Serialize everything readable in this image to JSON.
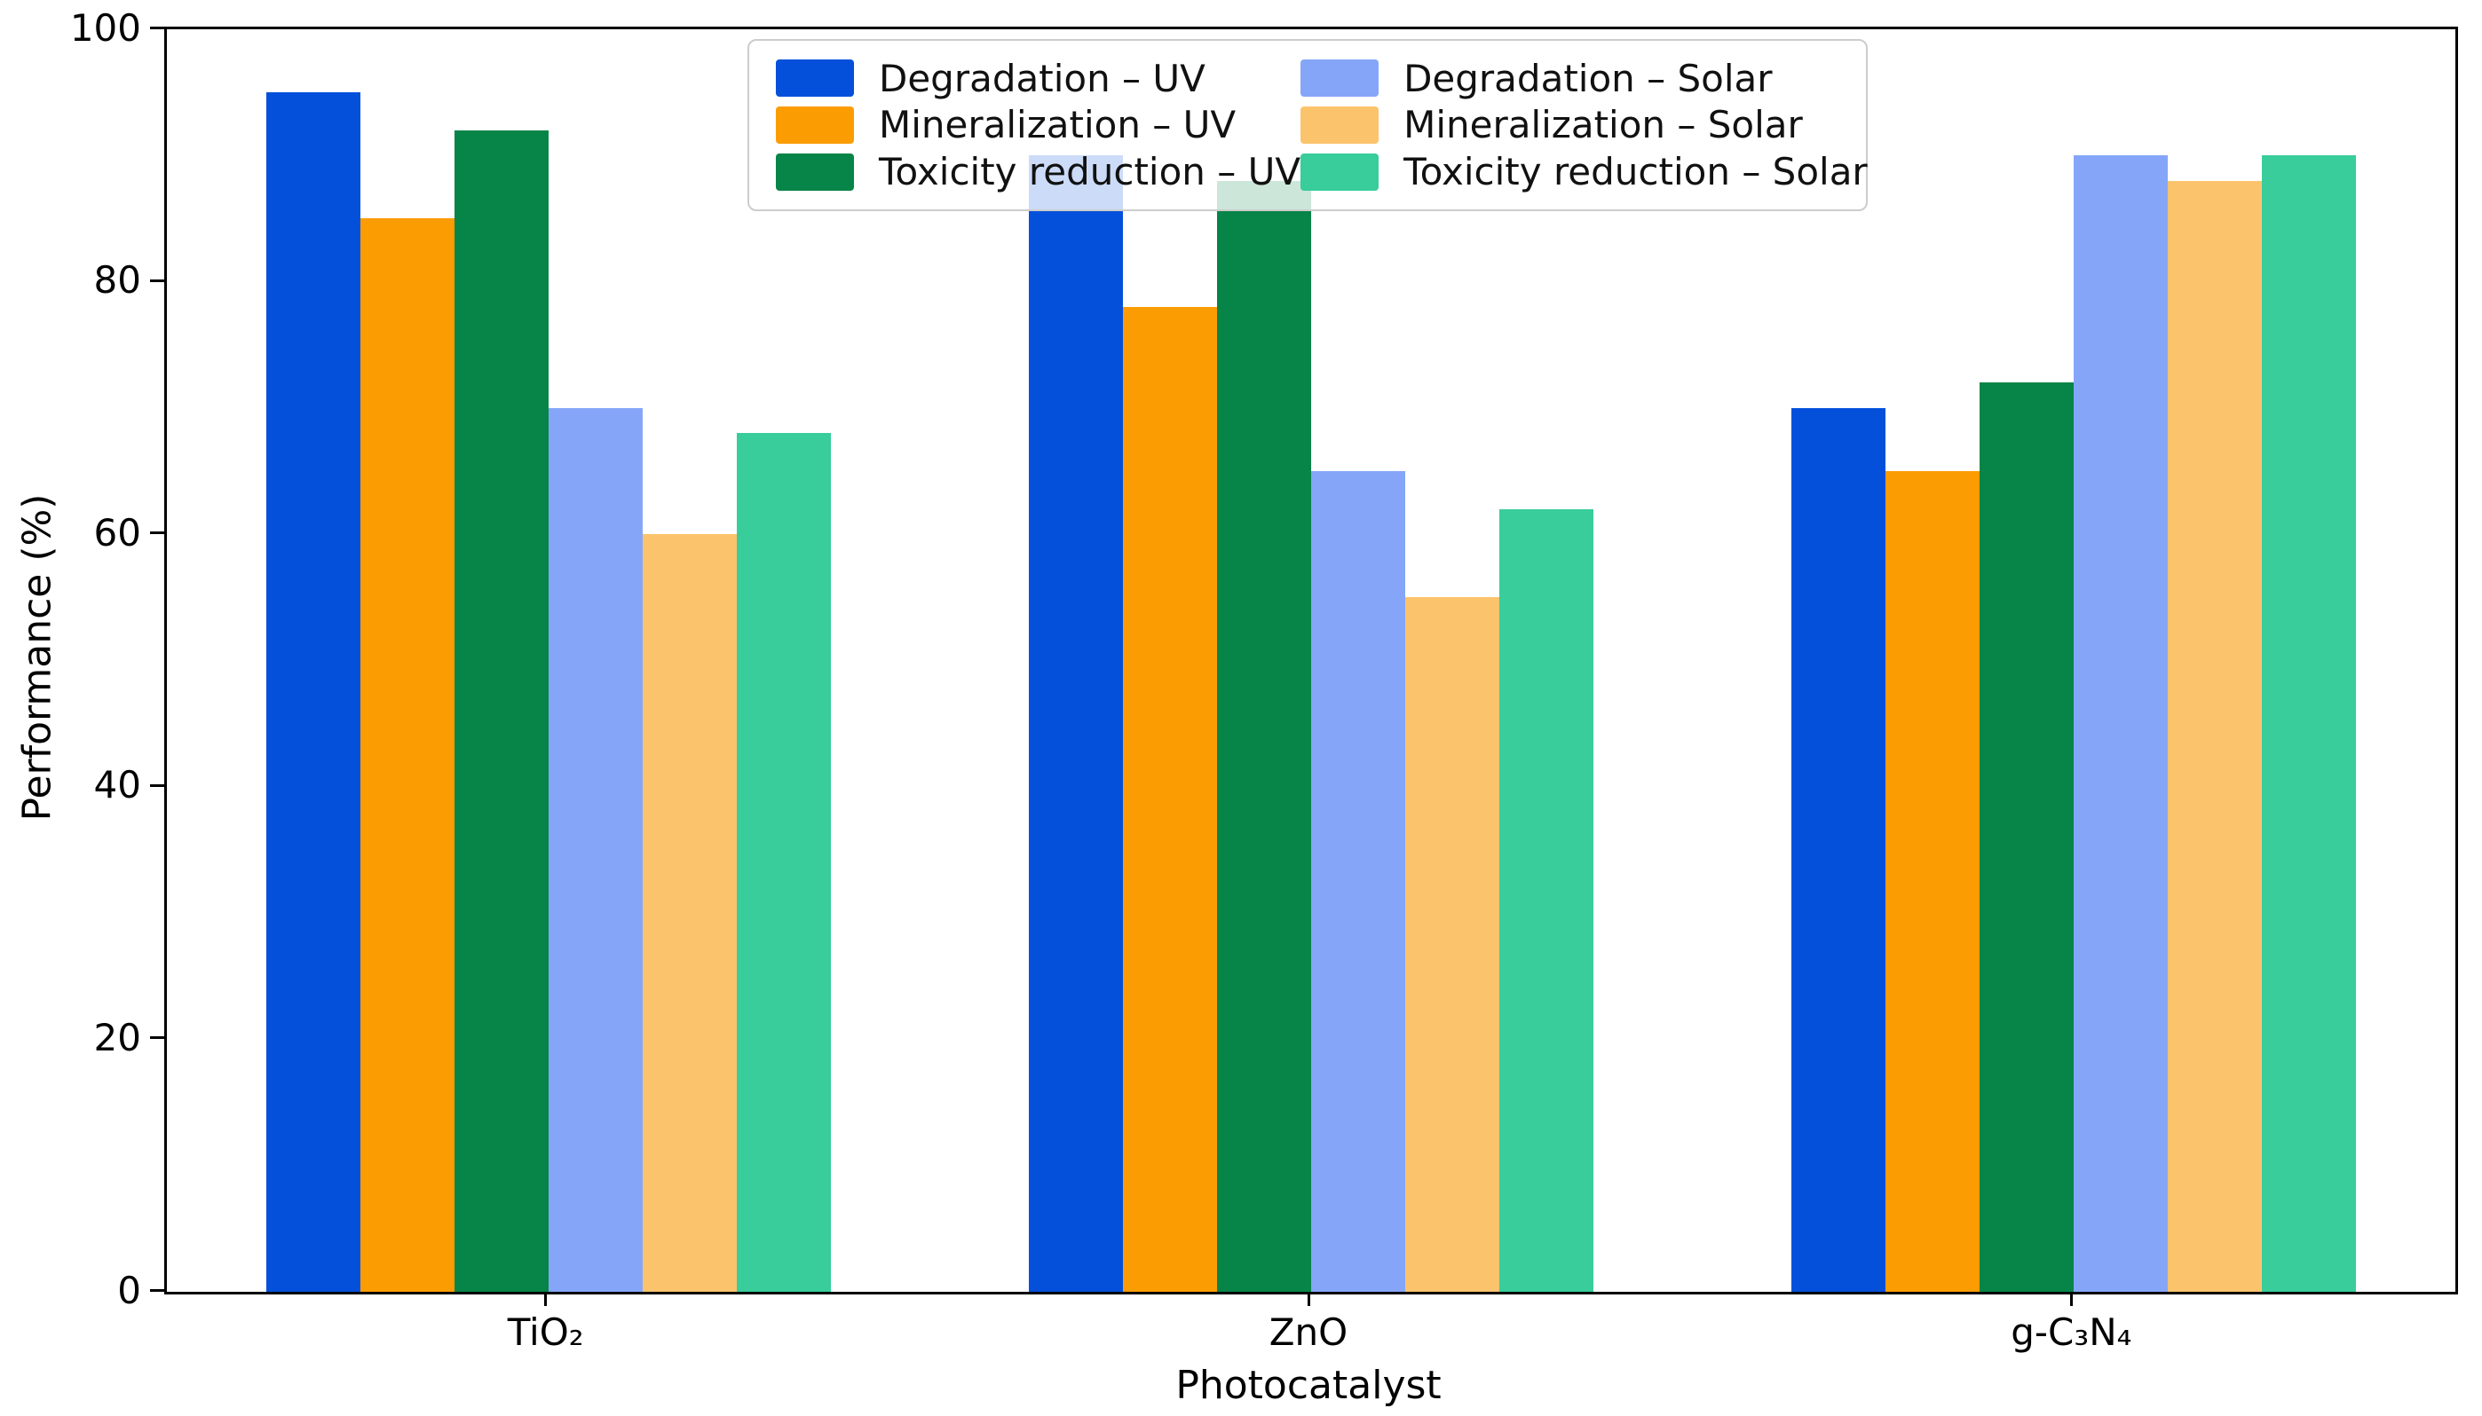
{
  "chart_data": {
    "type": "bar",
    "title": "",
    "xlabel": "Photocatalyst",
    "ylabel": "Performance (%)",
    "categories": [
      "TiO₂",
      "ZnO",
      "g-C₃N₄"
    ],
    "series": [
      {
        "name": "Degradation – UV",
        "color": "#0450db",
        "values": [
          95,
          90,
          70
        ]
      },
      {
        "name": "Mineralization – UV",
        "color": "#fc9c03",
        "values": [
          85,
          78,
          65
        ]
      },
      {
        "name": "Toxicity reduction – UV",
        "color": "#078448",
        "values": [
          92,
          88,
          72
        ]
      },
      {
        "name": "Degradation – Solar",
        "color": "#85a6f8",
        "values": [
          70,
          65,
          90
        ]
      },
      {
        "name": "Mineralization – Solar",
        "color": "#fcc36d",
        "values": [
          60,
          55,
          88
        ]
      },
      {
        "name": "Toxicity reduction – Solar",
        "color": "#38cd9b",
        "values": [
          68,
          62,
          90
        ]
      }
    ],
    "ylim": [
      0,
      100
    ],
    "yticks": [
      0,
      20,
      40,
      60,
      80,
      100
    ],
    "grid": false,
    "legend_position": "upper center",
    "legend_columns": 2,
    "spine_color": "#000000"
  }
}
